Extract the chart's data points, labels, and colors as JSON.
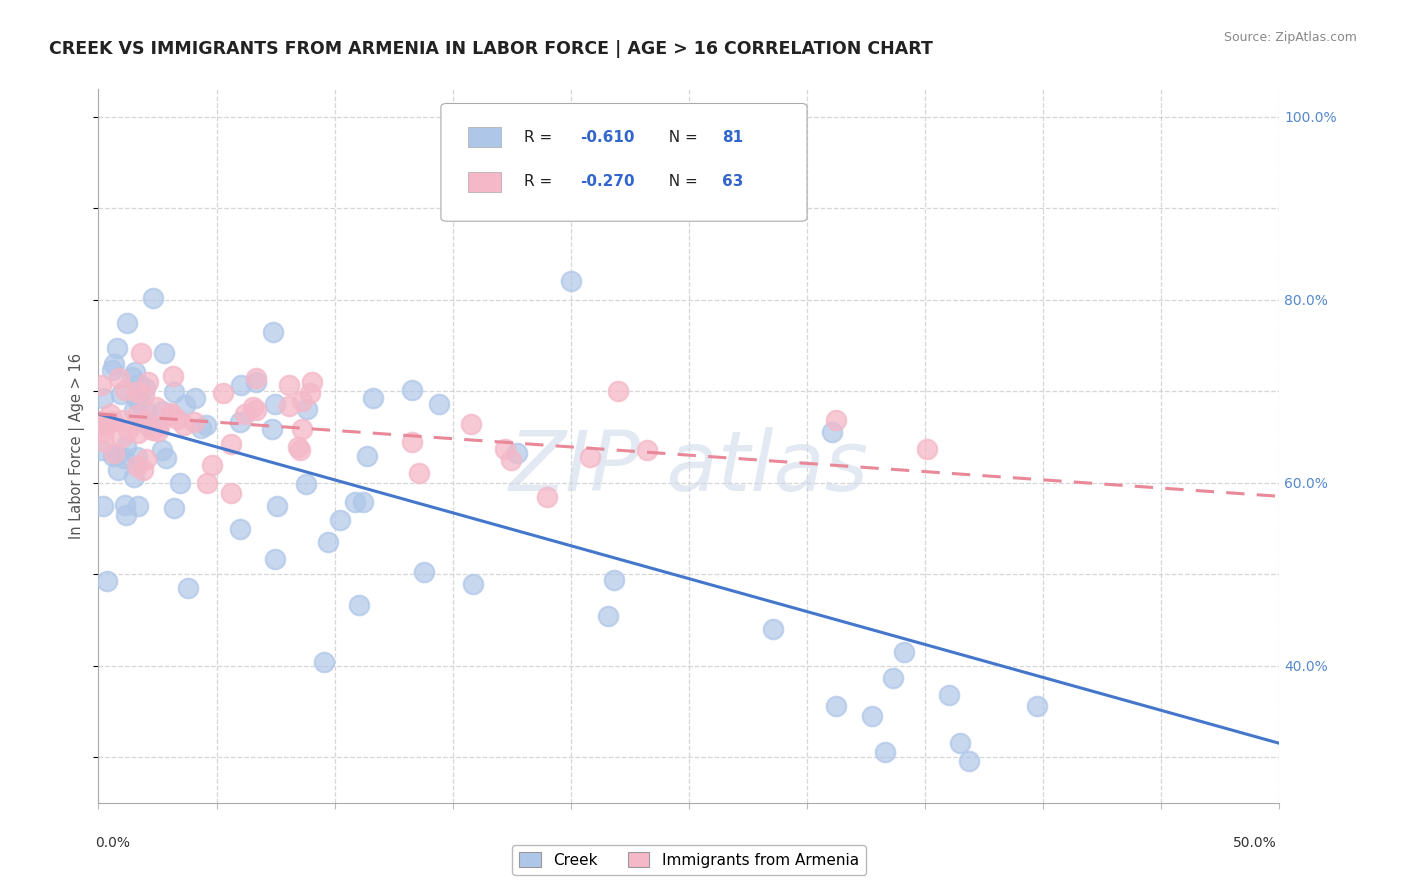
{
  "title": "CREEK VS IMMIGRANTS FROM ARMENIA IN LABOR FORCE | AGE > 16 CORRELATION CHART",
  "source": "Source: ZipAtlas.com",
  "ylabel": "In Labor Force | Age > 16",
  "creek_color": "#aec6e8",
  "armenia_color": "#f4b8c8",
  "creek_line_color": "#4477cc",
  "armenia_line_color": "#e88898",
  "watermark_text": "ZIP atlas",
  "background_color": "#ffffff",
  "grid_color": "#cccccc",
  "xlim": [
    0.0,
    0.5
  ],
  "ylim": [
    0.25,
    1.03
  ],
  "yticks": [
    0.4,
    0.6,
    0.8,
    1.0
  ],
  "ytick_labels": [
    "40.0%",
    "60.0%",
    "80.0%",
    "100.0%"
  ],
  "creek_intercept": 0.675,
  "creek_slope": -0.72,
  "armenia_intercept": 0.675,
  "armenia_slope": -0.18,
  "legend_r1": "R = ",
  "legend_v1": "-0.610",
  "legend_n1": "N = ",
  "legend_nv1": "81",
  "legend_r2": "R = ",
  "legend_v2": "-0.270",
  "legend_n2": "N = ",
  "legend_nv2": "63"
}
